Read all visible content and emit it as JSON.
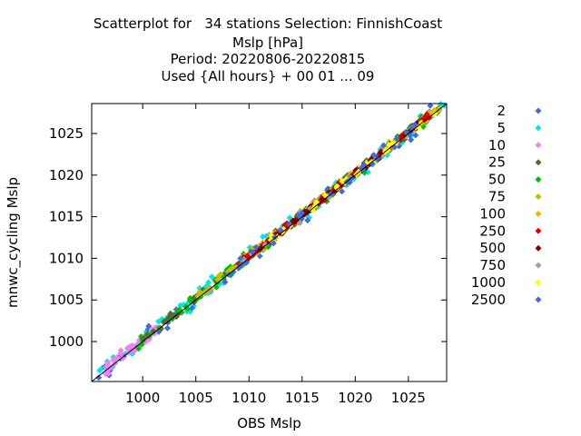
{
  "chart_data": {
    "type": "scatter",
    "title_lines": [
      "Scatterplot for   34 stations Selection: FinnishCoast",
      "Mslp [hPa]",
      "Period: 20220806-20220815",
      "Used {All hours} + 00 01 ... 09"
    ],
    "xlabel": "OBS Mslp",
    "ylabel": "mnwc_cycling Mslp",
    "xlim": [
      995.2,
      1028.6
    ],
    "ylim": [
      995.2,
      1028.6
    ],
    "xticks": [
      1000,
      1005,
      1010,
      1015,
      1020,
      1025
    ],
    "yticks": [
      1000,
      1005,
      1010,
      1015,
      1020,
      1025
    ],
    "diagonal": true,
    "legend_position": "right",
    "series": [
      {
        "name": "2",
        "color": "#4169e1"
      },
      {
        "name": "5",
        "color": "#00e5ee"
      },
      {
        "name": "10",
        "color": "#ee82ee"
      },
      {
        "name": "25",
        "color": "#556b2f"
      },
      {
        "name": "50",
        "color": "#00c000"
      },
      {
        "name": "75",
        "color": "#c0c000"
      },
      {
        "name": "100",
        "color": "#ffb000"
      },
      {
        "name": "250",
        "color": "#e00000"
      },
      {
        "name": "500",
        "color": "#800000"
      },
      {
        "name": "750",
        "color": "#a0a0a0"
      },
      {
        "name": "1000",
        "color": "#ffff00"
      },
      {
        "name": "2500",
        "color": "#4169e1"
      }
    ]
  }
}
